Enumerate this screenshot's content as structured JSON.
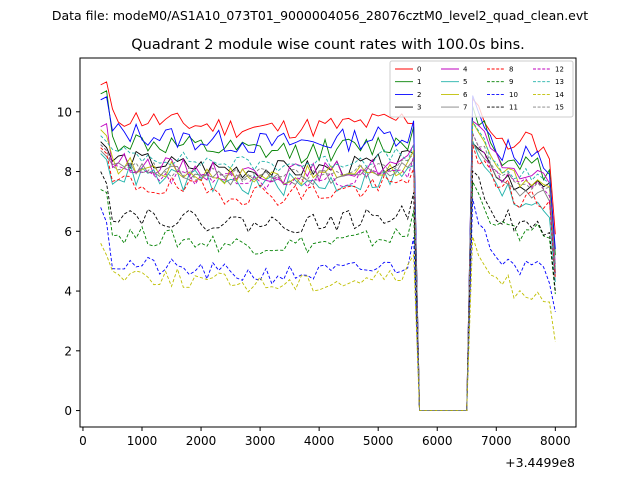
{
  "chart_data": {
    "type": "line",
    "suptitle": "Data file: modeM0/AS1A10_073T01_9000004056_28076cztM0_level2_quad_clean.evt",
    "title": "Quadrant 2 module wise count rates with 100.0s bins.",
    "xlabel": "",
    "ylabel": "",
    "x_offset_label": "+3.4499e8",
    "xlim": [
      -50,
      8350
    ],
    "ylim": [
      -0.55,
      11.8
    ],
    "x_ticks": [
      0,
      1000,
      2000,
      3000,
      4000,
      5000,
      6000,
      7000,
      8000
    ],
    "y_ticks": [
      0,
      2,
      4,
      6,
      8,
      10
    ],
    "x_tick_labels": [
      "0",
      "1000",
      "2000",
      "3000",
      "4000",
      "5000",
      "6000",
      "7000",
      "8000"
    ],
    "y_tick_labels": [
      "0",
      "2",
      "4",
      "6",
      "8",
      "10"
    ],
    "x_start": 300,
    "x_step": 100,
    "gap": {
      "from_x": 5700,
      "to_x": 6500,
      "value": 0
    },
    "legend_position": "top-right",
    "series": [
      {
        "name": "0",
        "color": "#ff0000",
        "dash": "solid",
        "first": [
          10.9,
          11.0
        ],
        "base": 9.8,
        "amp": 0.28,
        "seed": 11,
        "pre_gap": 9.6,
        "post": [
          10.6,
          10.2,
          9.8,
          9.4,
          9.1,
          8.9,
          8.8,
          9.0,
          8.9,
          9.2,
          9.0,
          8.9,
          8.7,
          8.6,
          8.4
        ],
        "last": 5.9
      },
      {
        "name": "1",
        "color": "#008000",
        "dash": "solid",
        "first": [
          10.6,
          10.7
        ],
        "base": 9.0,
        "amp": 0.3,
        "seed": 12,
        "pre_gap": 9.5,
        "post": [
          10.2,
          9.8,
          9.6,
          9.0,
          8.7,
          8.5,
          8.6,
          8.2,
          8.0,
          8.3,
          8.1,
          8.2,
          8.0,
          7.9,
          7.8
        ],
        "last": 5.2
      },
      {
        "name": "2",
        "color": "#0000ff",
        "dash": "solid",
        "first": [
          10.4,
          10.5
        ],
        "base": 9.3,
        "amp": 0.3,
        "seed": 13,
        "pre_gap": 9.7,
        "post": [
          10.4,
          9.9,
          9.7,
          9.2,
          8.8,
          8.6,
          8.9,
          8.5,
          8.2,
          8.6,
          8.4,
          8.5,
          8.2,
          8.0,
          7.6
        ],
        "last": 5.4
      },
      {
        "name": "3",
        "color": "#000000",
        "dash": "solid",
        "first": [
          9.0,
          8.8
        ],
        "base": 8.4,
        "amp": 0.25,
        "seed": 14,
        "pre_gap": 8.6,
        "post": [
          9.2,
          8.9,
          8.6,
          8.2,
          8.0,
          7.8,
          7.9,
          7.6,
          7.5,
          7.6,
          7.5,
          7.6,
          7.4,
          7.4,
          7.3
        ],
        "last": 4.6
      },
      {
        "name": "4",
        "color": "#bf00bf",
        "dash": "solid",
        "first": [
          9.5,
          9.6
        ],
        "base": 8.3,
        "amp": 0.25,
        "seed": 15,
        "pre_gap": 8.9,
        "post": [
          9.8,
          9.4,
          9.1,
          8.7,
          8.4,
          8.2,
          8.3,
          8.0,
          7.8,
          8.0,
          7.9,
          8.0,
          7.7,
          7.6,
          7.4
        ],
        "last": 4.9
      },
      {
        "name": "5",
        "color": "#20b2aa",
        "dash": "solid",
        "first": [
          8.6,
          8.4
        ],
        "base": 7.9,
        "amp": 0.3,
        "seed": 16,
        "pre_gap": 8.2,
        "post": [
          9.0,
          8.6,
          8.2,
          7.8,
          7.4,
          7.2,
          7.4,
          7.0,
          6.9,
          7.1,
          7.0,
          7.0,
          6.8,
          6.7,
          6.5
        ],
        "last": 4.3
      },
      {
        "name": "6",
        "color": "#bfbf00",
        "dash": "solid",
        "first": [
          9.4,
          9.2
        ],
        "base": 8.2,
        "amp": 0.25,
        "seed": 17,
        "pre_gap": 8.7,
        "post": [
          9.5,
          9.1,
          8.8,
          8.4,
          8.1,
          7.9,
          8.1,
          7.8,
          7.6,
          7.8,
          7.7,
          7.8,
          7.5,
          7.4,
          7.2
        ],
        "last": 4.7
      },
      {
        "name": "7",
        "color": "#808080",
        "dash": "solid",
        "first": [
          8.7,
          8.5
        ],
        "base": 8.1,
        "amp": 0.2,
        "seed": 18,
        "pre_gap": 8.4,
        "post": [
          9.1,
          8.7,
          8.5,
          8.1,
          7.8,
          7.6,
          7.7,
          7.4,
          7.3,
          7.4,
          7.3,
          7.4,
          7.2,
          7.1,
          7.0
        ],
        "last": 4.5
      },
      {
        "name": "8",
        "color": "#ff0000",
        "dash": "dashed",
        "first": [
          8.8,
          8.6
        ],
        "base": 7.6,
        "amp": 0.3,
        "seed": 19,
        "pre_gap": 8.1,
        "post": [
          9.0,
          8.5,
          8.2,
          7.8,
          7.5,
          7.3,
          7.5,
          7.1,
          7.0,
          7.2,
          7.1,
          7.1,
          6.9,
          6.8,
          6.7
        ],
        "last": 4.4
      },
      {
        "name": "9",
        "color": "#008000",
        "dash": "dashed",
        "first": [
          7.4,
          7.3
        ],
        "base": 5.9,
        "amp": 0.25,
        "seed": 20,
        "pre_gap": 6.7,
        "post": [
          7.6,
          7.2,
          6.9,
          6.5,
          6.3,
          6.1,
          6.2,
          6.0,
          5.9,
          6.0,
          5.9,
          6.0,
          5.8,
          5.8,
          5.7
        ],
        "last": 3.9
      },
      {
        "name": "10",
        "color": "#0000ff",
        "dash": "dashed",
        "first": [
          6.8,
          6.3
        ],
        "base": 4.9,
        "amp": 0.25,
        "seed": 21,
        "pre_gap": 5.8,
        "post": [
          6.9,
          6.4,
          6.0,
          5.6,
          5.3,
          5.1,
          5.2,
          4.9,
          4.8,
          4.9,
          4.8,
          4.8,
          4.6,
          4.5,
          4.4
        ],
        "last": 3.3
      },
      {
        "name": "11",
        "color": "#000000",
        "dash": "dashed",
        "first": [
          8.0,
          7.6
        ],
        "base": 6.6,
        "amp": 0.25,
        "seed": 22,
        "pre_gap": 7.3,
        "post": [
          8.2,
          7.7,
          7.3,
          6.9,
          6.6,
          6.4,
          6.5,
          6.2,
          6.1,
          6.2,
          6.1,
          6.2,
          6.0,
          5.9,
          5.8
        ],
        "last": 4.0
      },
      {
        "name": "12",
        "color": "#bf00bf",
        "dash": "dashed",
        "first": [
          8.9,
          8.7
        ],
        "base": 8.0,
        "amp": 0.2,
        "seed": 23,
        "pre_gap": 8.5,
        "post": [
          9.3,
          8.9,
          8.6,
          8.2,
          7.9,
          7.7,
          7.9,
          7.6,
          7.5,
          7.6,
          7.5,
          7.6,
          7.4,
          7.3,
          7.2
        ],
        "last": 4.6
      },
      {
        "name": "13",
        "color": "#20b2aa",
        "dash": "dashed",
        "first": [
          9.2,
          9.0
        ],
        "base": 8.6,
        "amp": 0.2,
        "seed": 24,
        "pre_gap": 8.9,
        "post": [
          9.6,
          9.2,
          8.9,
          8.5,
          8.2,
          8.0,
          8.1,
          7.8,
          7.7,
          7.9,
          7.8,
          7.9,
          7.6,
          7.5,
          7.4
        ],
        "last": 4.8
      },
      {
        "name": "14",
        "color": "#bfbf00",
        "dash": "dashed",
        "first": [
          5.6,
          5.2
        ],
        "base": 4.6,
        "amp": 0.25,
        "seed": 25,
        "pre_gap": 5.2,
        "post": [
          5.6,
          5.2,
          4.9,
          4.6,
          4.4,
          4.2,
          4.3,
          4.0,
          3.9,
          4.0,
          3.9,
          4.0,
          3.8,
          3.7,
          3.6
        ],
        "last": 2.3
      },
      {
        "name": "15",
        "color": "#808080",
        "dash": "dashed",
        "first": [
          8.9,
          8.7
        ],
        "base": 8.2,
        "amp": 0.2,
        "seed": 26,
        "pre_gap": 8.6,
        "post": [
          9.4,
          9.0,
          8.7,
          8.3,
          8.0,
          7.8,
          7.9,
          7.6,
          7.5,
          7.7,
          7.6,
          7.7,
          7.4,
          7.3,
          7.2
        ],
        "last": 4.7
      }
    ]
  }
}
